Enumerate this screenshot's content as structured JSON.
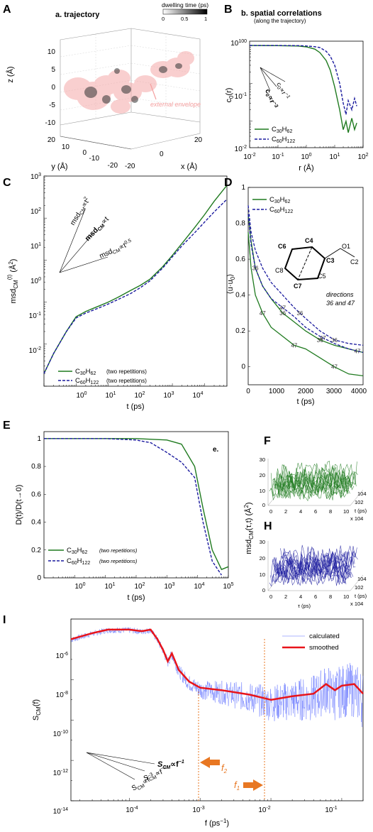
{
  "panel_A": {
    "letter": "A",
    "title": "a. trajectory",
    "colorbar_title": "dwelling time (ps)",
    "colorbar_ticks": [
      "0",
      "0.5",
      "1"
    ],
    "zlabel": "z (Å)",
    "ylabel": "y (Å)",
    "xlabel": "x (Å)",
    "z_ticks": [
      "10",
      "5",
      "0",
      "-5",
      "-10"
    ],
    "y_ticks": [
      "20",
      "10",
      "0",
      "-10",
      "-20"
    ],
    "x_ticks": [
      "20",
      "0",
      "-20"
    ],
    "annotation": "external envelope"
  },
  "panel_B": {
    "letter": "B",
    "title": "b. spatial correlations",
    "subtitle": "(along the trajectory)",
    "ylabel": "c0(r)",
    "xlabel": "r (Å)",
    "x_ticks": [
      "10-2",
      "10-1",
      "100",
      "101",
      "102"
    ],
    "y_ticks": [
      "100",
      "10-1",
      "10-2"
    ],
    "power_law_1": "c0 ∝ r-1",
    "power_law_3": "c0 ∝ r-3",
    "legend": [
      "C30H62",
      "C60H122"
    ]
  },
  "panel_C": {
    "letter": "C",
    "ylabel": "msdCM(t) (Å2)",
    "xlabel": "t (ps)",
    "x_ticks": [
      "100",
      "101",
      "102",
      "103",
      "104"
    ],
    "y_ticks": [
      "103",
      "102",
      "101",
      "100",
      "10-1",
      "10-2"
    ],
    "power_law_2": "msdCM ∝ t2",
    "power_law_1": "msdCM ∝ t",
    "power_law_05": "msdCM ∝ t0.5",
    "legend": [
      "C30H62",
      "C60H122"
    ],
    "legend_note": "(two repetitions)"
  },
  "panel_D": {
    "letter": "D",
    "ylabel": "⟨u·u0⟩",
    "xlabel": "t (ps)",
    "x_ticks": [
      "0",
      "1000",
      "2000",
      "3000",
      "4000"
    ],
    "y_ticks": [
      "1",
      "0.8",
      "0.6",
      "0.4",
      "0.2",
      "0"
    ],
    "legend": [
      "C30H62",
      "C60H122"
    ],
    "molecule_atoms": [
      "C6",
      "C4",
      "O1",
      "C3",
      "C2",
      "C8",
      "C5",
      "C7"
    ],
    "directions_note_1": "directions",
    "directions_note_2": "36 and 47",
    "curve_labels": [
      "36",
      "47"
    ]
  },
  "panel_E": {
    "letter": "E",
    "title": "e.",
    "ylabel": "D(t)/D(t→0)",
    "xlabel": "t (ps)",
    "x_ticks": [
      "100",
      "101",
      "102",
      "103",
      "104",
      "105"
    ],
    "y_ticks": [
      "1",
      "0.8",
      "0.6",
      "0.4",
      "0.2",
      "0"
    ],
    "legend": [
      "C30H62",
      "C60H122"
    ],
    "legend_note": "(two repetitions)"
  },
  "panel_FH": {
    "letter_F": "F",
    "letter_H": "H",
    "zlabel": "msdCM(τ,t) (Å2)",
    "z_ticks": [
      "30",
      "20",
      "10",
      "0"
    ],
    "tau_ticks": [
      "0",
      "2",
      "4",
      "6",
      "8",
      "10"
    ],
    "tau_label": "τ (ps)",
    "tau_mult": "x 104",
    "t_ticks": [
      "104",
      "102"
    ],
    "t_label": "t (ps)"
  },
  "panel_I": {
    "letter": "I",
    "ylabel": "SCM(f)",
    "xlabel": "f (ps-1)",
    "x_ticks": [
      "10-4",
      "10-3",
      "10-2",
      "10-1"
    ],
    "y_ticks": [
      "10-6",
      "10-8",
      "10-10",
      "10-12",
      "10-14"
    ],
    "legend": [
      "calculated",
      "smoothed"
    ],
    "marker_f2": "f2",
    "marker_f1": "f1",
    "power_law_1": "SCM ∝ f-1",
    "power_law_2": "SCM ∝ f-2",
    "power_law_3": "SCM ∝ f-3"
  },
  "colors": {
    "c30": "#1f7a1f",
    "c60": "#1a1a9e",
    "smoothed": "#e8141a",
    "calculated": "#4a5cff",
    "marker": "#e87722",
    "cloud": "#f2a0a0"
  },
  "chart_data": [
    {
      "panel": "B",
      "type": "line",
      "xscale": "log",
      "yscale": "log",
      "xlim": [
        0.01,
        100
      ],
      "ylim": [
        0.002,
        1.3
      ],
      "series": [
        {
          "name": "C30H62",
          "x": [
            0.01,
            0.1,
            0.5,
            1,
            2,
            3,
            5,
            7,
            10,
            15,
            20,
            25,
            30,
            40,
            50,
            60
          ],
          "y": [
            1.0,
            0.99,
            0.97,
            0.92,
            0.8,
            0.65,
            0.4,
            0.22,
            0.08,
            0.02,
            0.006,
            0.01,
            0.005,
            0.012,
            0.006,
            0.009
          ]
        },
        {
          "name": "C60H122",
          "x": [
            0.01,
            0.1,
            0.5,
            1,
            2,
            3,
            5,
            7,
            10,
            15,
            20,
            25,
            30,
            40,
            50,
            60
          ],
          "y": [
            1.0,
            1.0,
            0.99,
            0.97,
            0.93,
            0.88,
            0.7,
            0.52,
            0.3,
            0.1,
            0.03,
            0.015,
            0.035,
            0.02,
            0.04,
            0.025
          ]
        }
      ]
    },
    {
      "panel": "C",
      "type": "line",
      "xscale": "log",
      "yscale": "log",
      "xlim": [
        0.1,
        50000
      ],
      "ylim": [
        0.01,
        1000
      ],
      "series": [
        {
          "name": "C30H62",
          "x": [
            0.1,
            0.2,
            0.5,
            1,
            2,
            5,
            10,
            20,
            50,
            100,
            200,
            500,
            1000,
            2000,
            5000,
            10000,
            20000,
            50000
          ],
          "y": [
            0.02,
            0.06,
            0.2,
            0.45,
            0.6,
            0.8,
            1.0,
            1.3,
            1.9,
            2.5,
            3.5,
            7,
            13,
            25,
            60,
            120,
            250,
            600
          ]
        },
        {
          "name": "C60H122",
          "x": [
            0.1,
            0.2,
            0.5,
            1,
            2,
            5,
            10,
            20,
            50,
            100,
            200,
            500,
            1000,
            2000,
            5000,
            10000,
            20000,
            50000
          ],
          "y": [
            0.02,
            0.06,
            0.2,
            0.42,
            0.55,
            0.72,
            0.9,
            1.15,
            1.6,
            2.2,
            3.2,
            6.5,
            12,
            22,
            45,
            80,
            140,
            280
          ]
        }
      ]
    },
    {
      "panel": "D",
      "type": "line",
      "xlim": [
        0,
        4000
      ],
      "ylim": [
        -0.1,
        1.0
      ],
      "series": [
        {
          "name": "C30H62 (36)",
          "x": [
            0,
            100,
            250,
            500,
            800,
            1200,
            1600,
            2000,
            2500,
            3000,
            3500,
            4000
          ],
          "y": [
            0.85,
            0.7,
            0.55,
            0.45,
            0.38,
            0.3,
            0.25,
            0.2,
            0.15,
            0.12,
            0.1,
            0.08
          ]
        },
        {
          "name": "C30H62 (47)",
          "x": [
            0,
            100,
            250,
            500,
            800,
            1200,
            1600,
            2000,
            2500,
            3000,
            3500,
            4000
          ],
          "y": [
            0.75,
            0.55,
            0.4,
            0.3,
            0.22,
            0.17,
            0.12,
            0.1,
            0.05,
            0.0,
            -0.04,
            -0.05
          ]
        },
        {
          "name": "C60H122 (36)",
          "x": [
            0,
            100,
            250,
            500,
            800,
            1200,
            1600,
            2000,
            2500,
            3000,
            3500,
            4000
          ],
          "y": [
            0.9,
            0.75,
            0.65,
            0.55,
            0.47,
            0.4,
            0.33,
            0.27,
            0.2,
            0.15,
            0.13,
            0.12
          ]
        },
        {
          "name": "C60H122 (47)",
          "x": [
            0,
            100,
            250,
            500,
            800,
            1200,
            1600,
            2000,
            2500,
            3000,
            3500,
            4000
          ],
          "y": [
            0.85,
            0.68,
            0.55,
            0.45,
            0.38,
            0.33,
            0.28,
            0.22,
            0.17,
            0.13,
            0.1,
            0.08
          ]
        }
      ]
    },
    {
      "panel": "E",
      "type": "line",
      "xscale": "log",
      "xlim": [
        0.1,
        100000
      ],
      "ylim": [
        0,
        1.05
      ],
      "series": [
        {
          "name": "C30H62",
          "x": [
            0.1,
            10,
            100,
            1000,
            3000,
            8000,
            15000,
            30000,
            60000,
            100000
          ],
          "y": [
            1.0,
            1.0,
            1.0,
            0.99,
            0.96,
            0.8,
            0.5,
            0.2,
            0.06,
            0.08
          ]
        },
        {
          "name": "C60H122",
          "x": [
            0.1,
            10,
            100,
            300,
            1000,
            3000,
            8000,
            15000,
            30000,
            60000
          ],
          "y": [
            1.0,
            1.0,
            0.99,
            0.97,
            0.9,
            0.83,
            0.72,
            0.4,
            0.12,
            0.02
          ]
        }
      ]
    },
    {
      "panel": "I",
      "type": "line",
      "xscale": "log",
      "yscale": "log",
      "xlim": [
        1.5e-05,
        0.2
      ],
      "ylim": [
        1e-14,
        1e-05
      ],
      "series": [
        {
          "name": "smoothed",
          "x": [
            1.5e-05,
            3e-05,
            5e-05,
            0.0001,
            0.00015,
            0.0002,
            0.00025,
            0.0003,
            0.00035,
            0.0004,
            0.0005,
            0.0007,
            0.001,
            0.002,
            0.005,
            0.01,
            0.02,
            0.04,
            0.06,
            0.08,
            0.1,
            0.15,
            0.2
          ],
          "y": [
            1e-06,
            2e-06,
            3e-06,
            3e-06,
            2.5e-06,
            3e-06,
            1e-06,
            3e-07,
            8e-08,
            2e-07,
            3e-08,
            8e-09,
            4e-09,
            3e-09,
            1.8e-09,
            1e-09,
            1.5e-09,
            2e-09,
            6e-09,
            3e-09,
            5e-09,
            6e-09,
            2e-09
          ]
        }
      ]
    }
  ]
}
